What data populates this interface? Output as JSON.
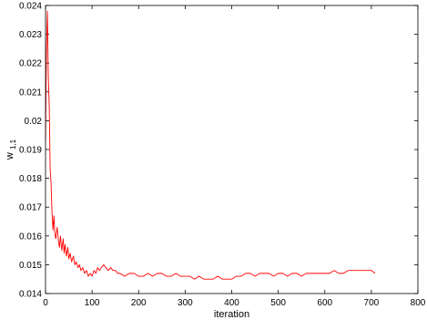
{
  "chart_data": {
    "type": "line",
    "title": "",
    "xlabel": "iteration",
    "ylabel": "w",
    "ylabel_subscript": "1,1",
    "xlim": [
      0,
      800
    ],
    "ylim": [
      0.014,
      0.024
    ],
    "xticks": [
      0,
      100,
      200,
      300,
      400,
      500,
      600,
      700,
      800
    ],
    "xtick_labels": [
      "0",
      "100",
      "200",
      "300",
      "400",
      "500",
      "600",
      "700",
      "800"
    ],
    "yticks": [
      0.014,
      0.015,
      0.016,
      0.017,
      0.018,
      0.019,
      0.02,
      0.021,
      0.022,
      0.023,
      0.024
    ],
    "ytick_labels": [
      "0.014",
      "0.015",
      "0.016",
      "0.017",
      "0.018",
      "0.019",
      "0.02",
      "0.021",
      "0.022",
      "0.023",
      "0.024"
    ],
    "grid": false,
    "legend": "none",
    "series": [
      {
        "color": "#ff0000",
        "x": [
          0,
          2,
          4,
          6,
          8,
          10,
          12,
          14,
          16,
          18,
          20,
          22,
          25,
          28,
          30,
          32,
          35,
          38,
          40,
          42,
          45,
          48,
          50,
          53,
          56,
          60,
          63,
          66,
          70,
          73,
          76,
          80,
          84,
          88,
          92,
          96,
          100,
          104,
          108,
          112,
          116,
          120,
          125,
          130,
          135,
          140,
          145,
          150,
          155,
          160,
          170,
          180,
          190,
          200,
          210,
          220,
          230,
          240,
          250,
          260,
          270,
          280,
          290,
          300,
          310,
          320,
          330,
          340,
          350,
          360,
          370,
          380,
          390,
          400,
          410,
          420,
          430,
          440,
          450,
          460,
          470,
          480,
          490,
          500,
          510,
          520,
          530,
          540,
          550,
          560,
          570,
          580,
          590,
          600,
          610,
          620,
          630,
          640,
          650,
          660,
          670,
          680,
          690,
          700,
          708
        ],
        "y": [
          0.0193,
          0.0225,
          0.0238,
          0.0215,
          0.0205,
          0.0183,
          0.0178,
          0.0168,
          0.0162,
          0.0167,
          0.0161,
          0.0159,
          0.0163,
          0.0158,
          0.0156,
          0.016,
          0.0155,
          0.0159,
          0.0154,
          0.0157,
          0.0153,
          0.0156,
          0.0152,
          0.0154,
          0.0151,
          0.0153,
          0.015,
          0.0151,
          0.0149,
          0.015,
          0.0148,
          0.0149,
          0.0147,
          0.0148,
          0.0146,
          0.0147,
          0.0146,
          0.0148,
          0.0147,
          0.0149,
          0.0148,
          0.0149,
          0.015,
          0.0149,
          0.0148,
          0.0149,
          0.0148,
          0.0148,
          0.0147,
          0.0147,
          0.0146,
          0.0147,
          0.0147,
          0.0146,
          0.0146,
          0.0147,
          0.0146,
          0.0147,
          0.0147,
          0.0146,
          0.0146,
          0.0147,
          0.0146,
          0.0146,
          0.0146,
          0.0145,
          0.0146,
          0.0145,
          0.0145,
          0.0145,
          0.0146,
          0.0145,
          0.0145,
          0.0145,
          0.0146,
          0.0146,
          0.0147,
          0.0147,
          0.0146,
          0.0147,
          0.0147,
          0.0147,
          0.0146,
          0.0147,
          0.0147,
          0.0146,
          0.0147,
          0.0147,
          0.0146,
          0.0147,
          0.0147,
          0.0147,
          0.0147,
          0.0147,
          0.0147,
          0.0148,
          0.0147,
          0.0147,
          0.0148,
          0.0148,
          0.0148,
          0.0148,
          0.0148,
          0.0148,
          0.0147
        ]
      }
    ]
  }
}
